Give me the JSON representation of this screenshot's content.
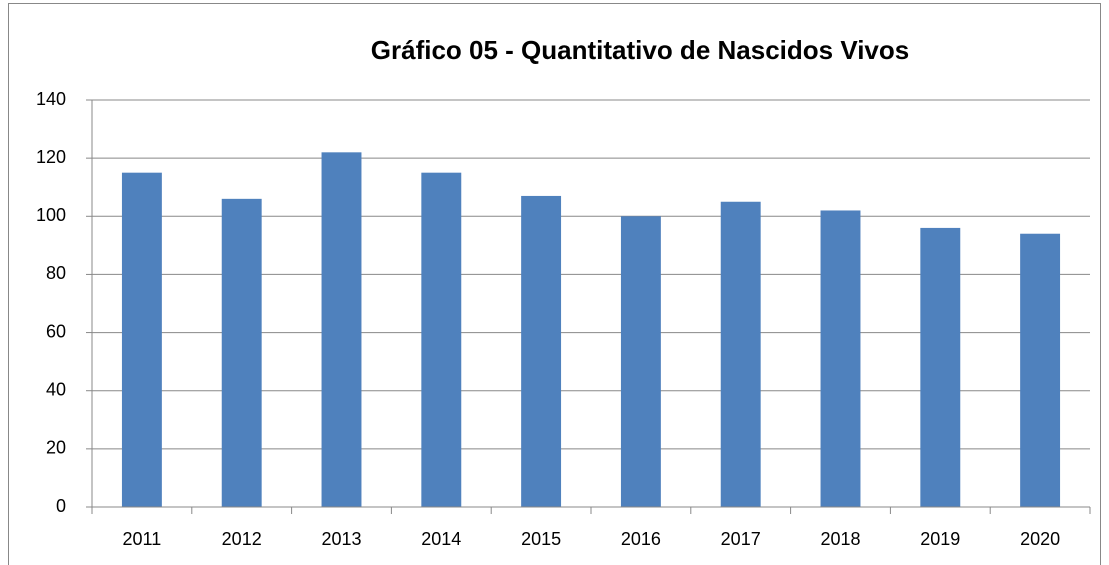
{
  "chart_data": {
    "type": "bar",
    "title": "Gráfico 05 - Quantitativo de Nascidos Vivos",
    "categories": [
      "2011",
      "2012",
      "2013",
      "2014",
      "2015",
      "2016",
      "2017",
      "2018",
      "2019",
      "2020"
    ],
    "values": [
      115,
      106,
      122,
      115,
      107,
      100,
      105,
      102,
      96,
      94
    ],
    "color": "#4f81bd",
    "ylim": [
      0,
      140
    ],
    "yticks": [
      0,
      20,
      40,
      60,
      80,
      100,
      120,
      140
    ],
    "grid": true
  }
}
